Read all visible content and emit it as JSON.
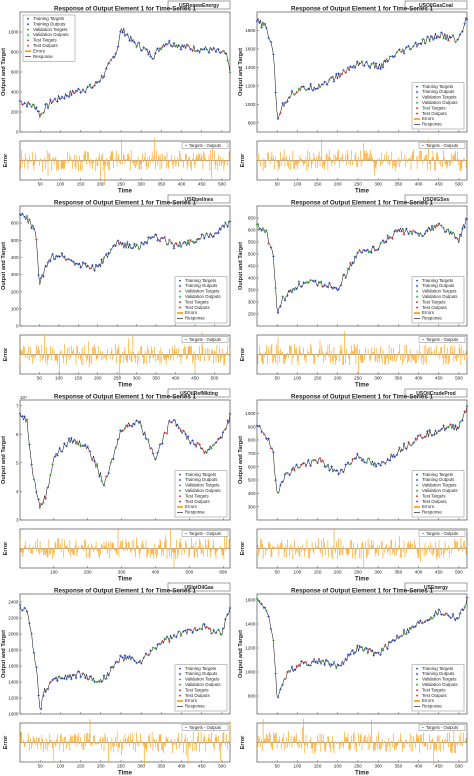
{
  "common": {
    "title": "Response of Output Element 1 for Time-Series 1",
    "ylabel": "Output and Target",
    "error_ylabel": "Error",
    "xlabel": "Time",
    "legend": [
      "Training Targets",
      "Training Outputs",
      "Validation Targets",
      "Validation Outputs",
      "Test Targets",
      "Test Outputs",
      "Errors",
      "Response"
    ],
    "error_legend": "Targets - Outputs"
  },
  "colors": {
    "training": "#1f3fbf",
    "validation": "#1f9e1f",
    "test": "#d62728",
    "response": "#000000",
    "errors": "#ff9900",
    "background": "#ffffff"
  },
  "chart_data": [
    {
      "type": "line",
      "tag": "USRenewEnergy",
      "legend_position": "top-left",
      "ylim": [
        0,
        1200
      ],
      "yticks": [
        0,
        200,
        400,
        600,
        800,
        1000
      ],
      "xlim": [
        0,
        520
      ],
      "xticks": [
        50,
        100,
        150,
        200,
        250,
        300,
        350,
        400,
        450,
        500
      ],
      "x": [
        0,
        20,
        40,
        50,
        60,
        80,
        100,
        120,
        150,
        180,
        210,
        240,
        250,
        260,
        280,
        300,
        330,
        360,
        400,
        430,
        470,
        510,
        520
      ],
      "values": [
        310,
        280,
        250,
        160,
        230,
        310,
        340,
        380,
        420,
        450,
        580,
        820,
        1020,
        1000,
        900,
        850,
        760,
        900,
        860,
        840,
        820,
        780,
        600
      ]
    },
    {
      "type": "line",
      "tag": "USOilGasCoal",
      "legend_position": "bottom-right",
      "ylim": [
        700,
        2000
      ],
      "yticks": [
        800,
        1000,
        1200,
        1400,
        1600,
        1800
      ],
      "xlim": [
        0,
        520
      ],
      "xticks": [
        50,
        100,
        150,
        200,
        250,
        300,
        350,
        400,
        450,
        500
      ],
      "x": [
        0,
        20,
        40,
        50,
        60,
        80,
        100,
        150,
        200,
        250,
        300,
        350,
        400,
        450,
        500,
        520
      ],
      "values": [
        1900,
        1850,
        1600,
        850,
        950,
        1100,
        1150,
        1200,
        1300,
        1450,
        1400,
        1550,
        1650,
        1750,
        1700,
        1950
      ]
    },
    {
      "type": "line",
      "tag": "USPipelines",
      "legend_position": "bottom-right",
      "ylim": [
        0,
        700
      ],
      "yticks": [
        0,
        100,
        200,
        300,
        400,
        500,
        600
      ],
      "xlim": [
        0,
        540
      ],
      "xticks": [
        50,
        100,
        150,
        200,
        250,
        300,
        350,
        400,
        450,
        500
      ],
      "x": [
        0,
        20,
        40,
        50,
        60,
        80,
        100,
        150,
        200,
        250,
        300,
        350,
        400,
        450,
        500,
        540
      ],
      "values": [
        650,
        620,
        550,
        250,
        300,
        400,
        420,
        360,
        340,
        480,
        460,
        520,
        470,
        500,
        540,
        600
      ]
    },
    {
      "type": "line",
      "tag": "USOilGSvs",
      "legend_position": "bottom-right",
      "ylim": [
        200,
        700
      ],
      "yticks": [
        250,
        300,
        350,
        400,
        450,
        500,
        550,
        600,
        650
      ],
      "xlim": [
        0,
        520
      ],
      "xticks": [
        50,
        100,
        150,
        200,
        250,
        300,
        350,
        400,
        450,
        500
      ],
      "x": [
        0,
        20,
        40,
        50,
        60,
        80,
        100,
        150,
        200,
        250,
        300,
        350,
        400,
        450,
        500,
        520
      ],
      "values": [
        620,
        600,
        500,
        250,
        300,
        340,
        370,
        380,
        360,
        500,
        530,
        600,
        580,
        620,
        560,
        650
      ]
    },
    {
      "type": "line",
      "tag": "USOilRefMkting",
      "legend_position": "bottom-right",
      "y_exponent": "10⁴",
      "ylim": [
        3,
        7.2
      ],
      "yticks": [
        3,
        4,
        5,
        6,
        7
      ],
      "xlim": [
        0,
        620
      ],
      "xticks": [
        100,
        200,
        300,
        400,
        500,
        600
      ],
      "x": [
        0,
        20,
        40,
        60,
        80,
        100,
        150,
        200,
        250,
        300,
        350,
        400,
        450,
        500,
        550,
        600,
        620
      ],
      "values": [
        6.7,
        6.5,
        4.5,
        3.4,
        4.0,
        5.2,
        5.8,
        5.6,
        4.2,
        6.2,
        6.5,
        5.2,
        6.6,
        5.8,
        5.4,
        6.0,
        6.6
      ]
    },
    {
      "type": "line",
      "tag": "USOilCrudeProd",
      "legend_position": "bottom-right",
      "ylim": [
        200,
        1100
      ],
      "yticks": [
        300,
        400,
        500,
        600,
        700,
        800,
        900,
        1000
      ],
      "xlim": [
        0,
        520
      ],
      "xticks": [
        50,
        100,
        150,
        200,
        250,
        300,
        350,
        400,
        450,
        500
      ],
      "x": [
        0,
        20,
        40,
        50,
        60,
        80,
        100,
        150,
        200,
        250,
        300,
        350,
        400,
        450,
        500,
        520
      ],
      "values": [
        900,
        850,
        700,
        380,
        500,
        560,
        600,
        650,
        550,
        680,
        600,
        720,
        820,
        880,
        900,
        1050
      ]
    },
    {
      "type": "line",
      "tag": "USIntOilGas",
      "legend_position": "bottom-right",
      "ylim": [
        1000,
        2500
      ],
      "yticks": [
        1000,
        1200,
        1400,
        1600,
        1800,
        2000,
        2200,
        2400
      ],
      "xlim": [
        0,
        520
      ],
      "xticks": [
        50,
        100,
        150,
        200,
        250,
        300,
        350,
        400,
        450,
        500
      ],
      "x": [
        0,
        20,
        40,
        50,
        60,
        80,
        100,
        150,
        200,
        250,
        300,
        350,
        400,
        450,
        500,
        520
      ],
      "values": [
        2350,
        2250,
        1600,
        1050,
        1300,
        1400,
        1450,
        1500,
        1400,
        1700,
        1650,
        1900,
        2000,
        2100,
        2000,
        2350
      ]
    },
    {
      "type": "line",
      "tag": "USEnergy",
      "legend_position": "bottom-right",
      "ylim": [
        650,
        1650
      ],
      "yticks": [
        800,
        1000,
        1200,
        1400,
        1600
      ],
      "xlim": [
        0,
        520
      ],
      "xticks": [
        50,
        100,
        150,
        200,
        250,
        300,
        350,
        400,
        450,
        500
      ],
      "x": [
        0,
        20,
        40,
        50,
        60,
        80,
        100,
        150,
        200,
        250,
        300,
        350,
        400,
        450,
        500,
        520
      ],
      "values": [
        1600,
        1550,
        1300,
        750,
        900,
        1000,
        1050,
        1100,
        1050,
        1200,
        1150,
        1300,
        1400,
        1500,
        1450,
        1600
      ]
    }
  ]
}
